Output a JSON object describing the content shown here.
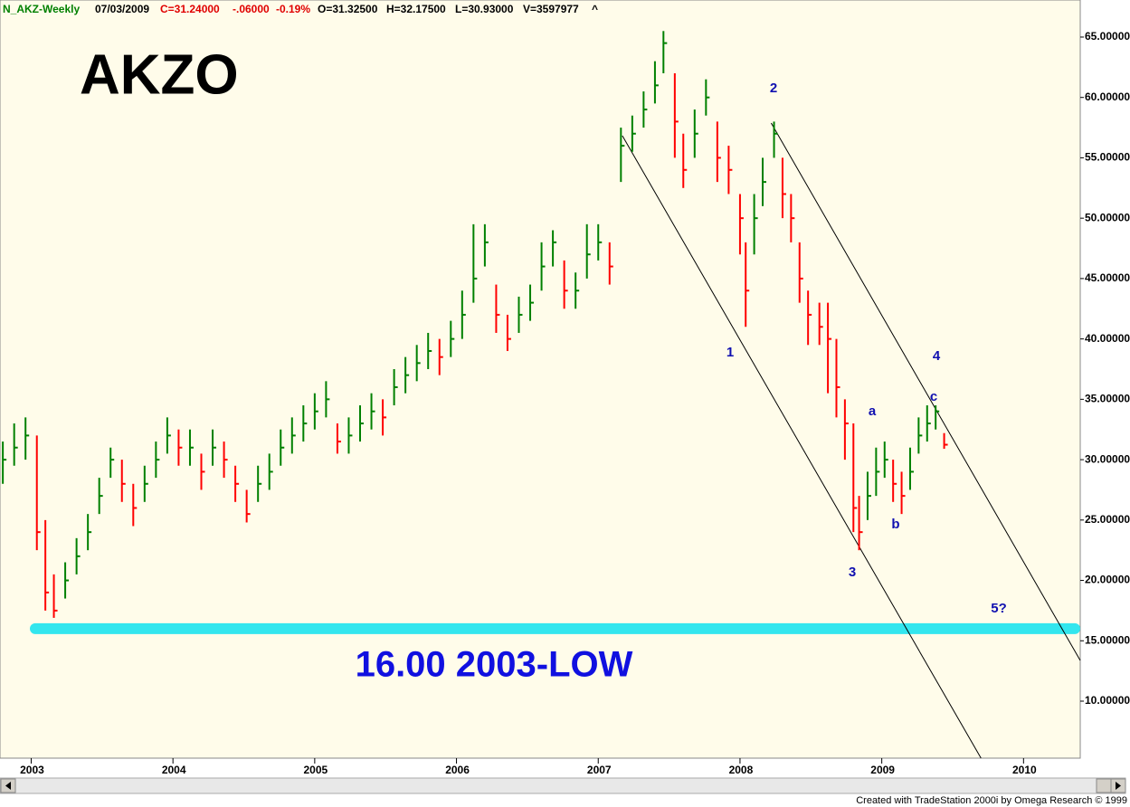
{
  "header": {
    "symbol": "N_AKZ-Weekly",
    "date": "07/03/2009",
    "close": "C=31.24000",
    "change": "-.06000",
    "change_pct": "-0.19%",
    "open": "O=31.32500",
    "high": "H=32.17500",
    "low": "L=30.93000",
    "volume": "V=3597977",
    "marker": "^"
  },
  "footer": "Created with TradeStation 2000i by Omega Research © 1999",
  "chart_data": {
    "type": "ohlc",
    "title": "AKZO",
    "x": [
      2002.8,
      2002.88,
      2002.96,
      2003.04,
      2003.1,
      2003.16,
      2003.24,
      2003.32,
      2003.4,
      2003.48,
      2003.56,
      2003.64,
      2003.72,
      2003.8,
      2003.88,
      2003.96,
      2004.04,
      2004.12,
      2004.2,
      2004.28,
      2004.36,
      2004.44,
      2004.52,
      2004.6,
      2004.68,
      2004.76,
      2004.84,
      2004.92,
      2005.0,
      2005.08,
      2005.16,
      2005.24,
      2005.32,
      2005.4,
      2005.48,
      2005.56,
      2005.64,
      2005.72,
      2005.8,
      2005.88,
      2005.96,
      2006.04,
      2006.12,
      2006.2,
      2006.28,
      2006.36,
      2006.44,
      2006.52,
      2006.6,
      2006.68,
      2006.76,
      2006.84,
      2006.92,
      2007.0,
      2007.08,
      2007.16,
      2007.24,
      2007.32,
      2007.4,
      2007.46,
      2007.54,
      2007.6,
      2007.68,
      2007.76,
      2007.84,
      2007.92,
      2008.0,
      2008.04,
      2008.1,
      2008.16,
      2008.24,
      2008.3,
      2008.36,
      2008.42,
      2008.48,
      2008.56,
      2008.62,
      2008.68,
      2008.74,
      2008.8,
      2008.84,
      2008.9,
      2008.96,
      2009.02,
      2009.08,
      2009.14,
      2009.2,
      2009.26,
      2009.32,
      2009.38,
      2009.44
    ],
    "high": [
      31.5,
      33,
      33.5,
      32,
      25,
      20.5,
      21.5,
      23.5,
      25.5,
      28.5,
      31,
      30,
      28,
      29.5,
      31.5,
      33.5,
      32.5,
      32.5,
      30.5,
      32.5,
      31.5,
      29.5,
      27.5,
      29.5,
      30.5,
      32.5,
      33.5,
      34.5,
      35.5,
      36.5,
      33,
      33.5,
      34.5,
      35.5,
      35,
      37.5,
      38.5,
      39.5,
      40.5,
      40,
      41.5,
      44,
      49.5,
      49.5,
      44.5,
      42,
      43.5,
      44.5,
      48,
      49,
      46.5,
      45.5,
      49.5,
      49.5,
      48,
      57.5,
      58.5,
      60.5,
      63,
      65.5,
      62,
      57,
      59,
      61.5,
      58,
      56,
      52,
      48,
      52,
      55,
      58,
      55,
      52,
      48,
      44,
      43,
      43,
      40,
      35,
      33,
      27,
      29,
      31,
      31.5,
      30,
      29,
      31,
      33.5,
      34.5,
      34.5,
      32.2
    ],
    "low": [
      28,
      29.5,
      30,
      22.5,
      17.5,
      16.9,
      18.5,
      20.5,
      22.5,
      25.5,
      28.5,
      26.5,
      24.5,
      26.5,
      28.5,
      30.5,
      29.5,
      29.5,
      27.5,
      29.5,
      28.5,
      26.5,
      24.8,
      26.5,
      27.5,
      29.5,
      30.5,
      31.5,
      32.5,
      33.5,
      30.5,
      30.5,
      31.5,
      32.5,
      32,
      34.5,
      35.5,
      36.5,
      37.5,
      37,
      38.5,
      40,
      43,
      46,
      40.5,
      39,
      40.5,
      41.5,
      44,
      46,
      42.5,
      42.5,
      45,
      46.5,
      44.5,
      53,
      55.5,
      57.5,
      59.5,
      62,
      55,
      52.5,
      55,
      58.5,
      53,
      52,
      47,
      41,
      47,
      51,
      55,
      50,
      48,
      43,
      39.5,
      39.5,
      35.5,
      33.5,
      30,
      24,
      22.5,
      25,
      27,
      28.5,
      26.5,
      25.5,
      27.5,
      30.5,
      31.5,
      32.5,
      30.9
    ],
    "close": [
      30,
      31,
      32,
      24,
      19,
      17.5,
      20,
      22,
      24,
      27,
      30,
      28,
      26,
      28,
      30,
      32,
      31,
      31,
      29,
      31,
      30,
      28,
      25.5,
      28,
      29,
      31,
      32,
      33,
      34,
      35,
      31.5,
      32,
      33,
      34,
      33.5,
      36,
      37,
      38,
      39,
      38.5,
      40,
      42,
      45,
      48,
      42,
      40,
      42,
      43,
      46,
      48,
      44,
      44,
      47,
      48,
      46,
      56,
      57,
      59,
      61,
      64.5,
      58,
      54,
      57,
      60,
      55,
      54,
      50,
      44,
      50,
      53,
      57,
      52,
      50,
      45,
      42,
      41,
      40,
      36,
      33,
      26,
      24,
      27,
      29,
      30,
      28,
      27,
      29,
      32,
      33,
      34,
      31.24
    ],
    "up_color": "#008000",
    "down_color": "#ff0000",
    "xlim": [
      2002.78,
      2010.4
    ],
    "xticks": [
      2003,
      2004,
      2005,
      2006,
      2007,
      2008,
      2009,
      2010
    ],
    "ylim": [
      5.28,
      68.07
    ],
    "yticks": [
      {
        "value": 10,
        "label": "10.00000"
      },
      {
        "value": 15,
        "label": "15.00000"
      },
      {
        "value": 20,
        "label": "20.00000"
      },
      {
        "value": 25,
        "label": "25.00000"
      },
      {
        "value": 30,
        "label": "30.00000"
      },
      {
        "value": 35,
        "label": "35.00000"
      },
      {
        "value": 40,
        "label": "40.00000"
      },
      {
        "value": 45,
        "label": "45.00000"
      },
      {
        "value": 50,
        "label": "50.00000"
      },
      {
        "value": 55,
        "label": "55.00000"
      },
      {
        "value": 60,
        "label": "60.00000"
      },
      {
        "value": 65,
        "label": "65.00000"
      }
    ],
    "support": {
      "value": 16,
      "label": "16.00 2003-LOW",
      "color": "#33e6ee"
    },
    "channels": [
      {
        "x": [
          2007.17,
          2009.7
        ],
        "y": [
          56.83,
          5.28
        ]
      },
      {
        "x": [
          2008.22,
          2010.4
        ],
        "y": [
          57.88,
          13.37
        ]
      }
    ],
    "wave_labels": [
      "1",
      "2",
      "3",
      "4",
      "5?",
      "a",
      "b",
      "c"
    ]
  }
}
